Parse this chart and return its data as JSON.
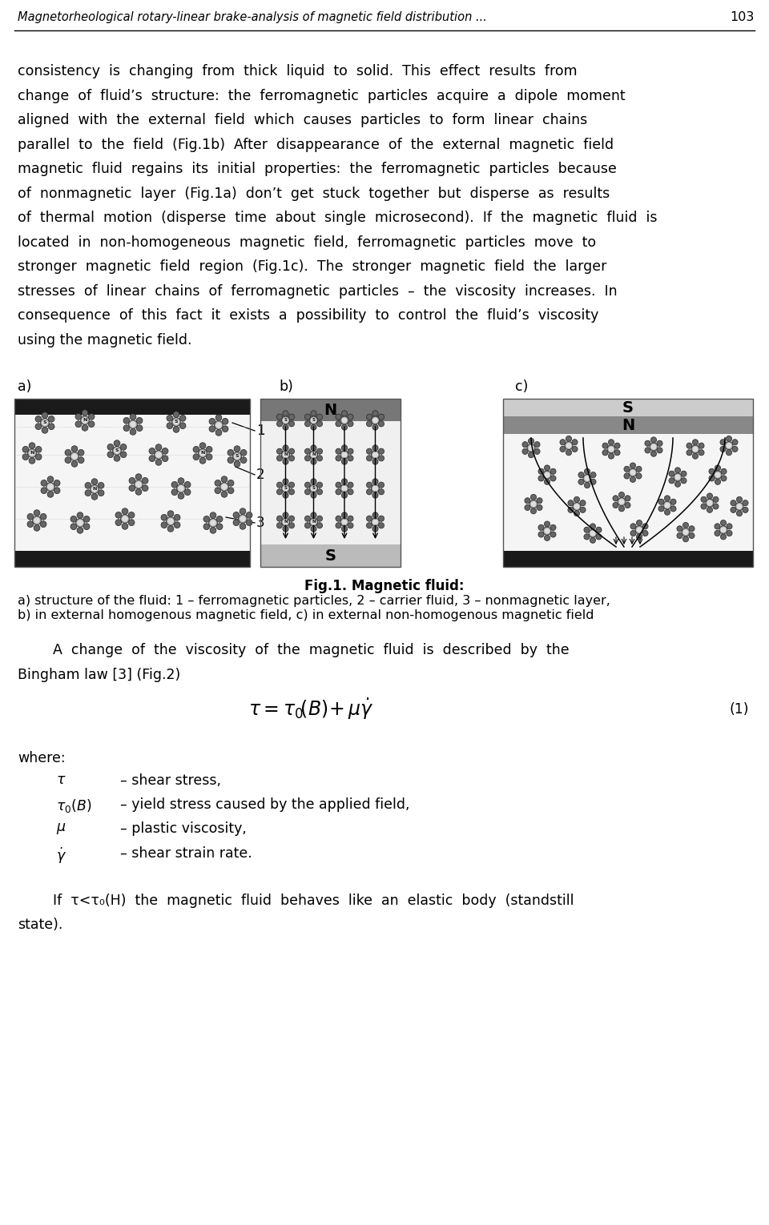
{
  "page_title": "Magnetorheological rotary-linear brake-analysis of magnetic field distribution ...",
  "page_number": "103",
  "body_lines": [
    "consistency  is  changing  from  thick  liquid  to  solid.  This  effect  results  from",
    "change  of  fluid’s  structure:  the  ferromagnetic  particles  acquire  a  dipole  moment",
    "aligned  with  the  external  field  which  causes  particles  to  form  linear  chains",
    "parallel  to  the  field  (Fig.1b)  After  disappearance  of  the  external  magnetic  field",
    "magnetic  fluid  regains  its  initial  properties:  the  ferromagnetic  particles  because",
    "of  nonmagnetic  layer  (Fig.1a)  don’t  get  stuck  together  but  disperse  as  results",
    "of  thermal  motion  (disperse  time  about  single  microsecond).  If  the  magnetic  fluid  is",
    "located  in  non-homogeneous  magnetic  field,  ferromagnetic  particles  move  to",
    "stronger  magnetic  field  region  (Fig.1c).  The  stronger  magnetic  field  the  larger",
    "stresses  of  linear  chains  of  ferromagnetic  particles  –  the  viscosity  increases.  In",
    "consequence  of  this  fact  it  exists  a  possibility  to  control  the  fluid’s  viscosity",
    "using the magnetic field."
  ],
  "fig_label_a": "a)",
  "fig_label_b": "b)",
  "fig_label_c": "c)",
  "fig_caption_bold": "Fig.1. Magnetic fluid:",
  "fig_caption_line1": "a) structure of the fluid: 1 – ferromagnetic particles, 2 – carrier fluid, 3 – nonmagnetic layer,",
  "fig_caption_line2": "b) in external homogenous magnetic field, c) in external non-homogenous magnetic field",
  "para2_line1": "        A  change  of  the  viscosity  of  the  magnetic  fluid  is  described  by  the",
  "para2_line2": "Bingham law [3] (Fig.2)",
  "equation_label": "(1)",
  "where_text": "where:",
  "items": [
    [
      "τ",
      "– shear stress,"
    ],
    [
      "τ₀(B)",
      "– yield stress caused by the applied field,"
    ],
    [
      "μ",
      "– plastic viscosity,"
    ],
    [
      "γ̇",
      "– shear strain rate."
    ]
  ],
  "final_line1": "        If  τ<τ₀(H)  the  magnetic  fluid  behaves  like  an  elastic  body  (standstill",
  "final_line2": "state).",
  "bg_color": "#ffffff"
}
